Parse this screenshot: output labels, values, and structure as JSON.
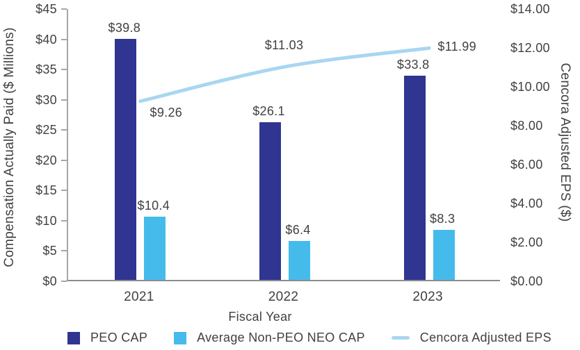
{
  "chart_data": {
    "type": "bar+line",
    "categories": [
      "2021",
      "2022",
      "2023"
    ],
    "series": [
      {
        "name": "PEO CAP",
        "type": "bar",
        "axis": "left",
        "color": "#2F3590",
        "values": [
          39.8,
          26.1,
          33.8
        ],
        "labels": [
          "$39.8",
          "$26.1",
          "$33.8"
        ]
      },
      {
        "name": "Average Non-PEO NEO CAP",
        "type": "bar",
        "axis": "left",
        "color": "#45BBEC",
        "values": [
          10.4,
          6.4,
          8.3
        ],
        "labels": [
          "$10.4",
          "$6.4",
          "$8.3"
        ]
      },
      {
        "name": "Cencora Adjusted EPS",
        "type": "line",
        "axis": "right",
        "color": "#A9D6F1",
        "values": [
          9.26,
          11.03,
          11.99
        ],
        "labels": [
          "$9.26",
          "$11.03",
          "$11.99"
        ],
        "label_offsets": [
          [
            39,
            16
          ],
          [
            1,
            -31
          ],
          [
            42,
            -2
          ]
        ]
      }
    ],
    "left_axis": {
      "title": "Compensation Actually Paid ($ Millions)",
      "min": 0,
      "max": 45,
      "step": 5,
      "tick_labels": [
        "$0",
        "$5",
        "$10",
        "$15",
        "$20",
        "$25",
        "$30",
        "$35",
        "$40",
        "$45"
      ]
    },
    "right_axis": {
      "title": "Cencora Adjusted EPS ($)",
      "min": 0,
      "max": 14,
      "step": 2,
      "tick_labels": [
        "$0.00",
        "$2.00",
        "$4.00",
        "$6.00",
        "$8.00",
        "$10.00",
        "$12.00",
        "$14.00"
      ]
    },
    "x_axis": {
      "title": "Fiscal Year"
    },
    "legend": [
      {
        "label": "PEO CAP",
        "marker": "square",
        "color": "#2F3590"
      },
      {
        "label": "Average Non-PEO NEO CAP",
        "marker": "square",
        "color": "#45BBEC"
      },
      {
        "label": "Cencora Adjusted EPS",
        "marker": "line",
        "color": "#A9D6F1"
      }
    ],
    "grid": false,
    "legend_position": "bottom"
  },
  "colors": {
    "text": "#414042",
    "y_axis_line": "#A6A6A6",
    "x_axis_line": "#8C8C8C",
    "peo_bar": "#2F3590",
    "neo_bar": "#45BBEC",
    "eps_line": "#A9D6F1"
  }
}
